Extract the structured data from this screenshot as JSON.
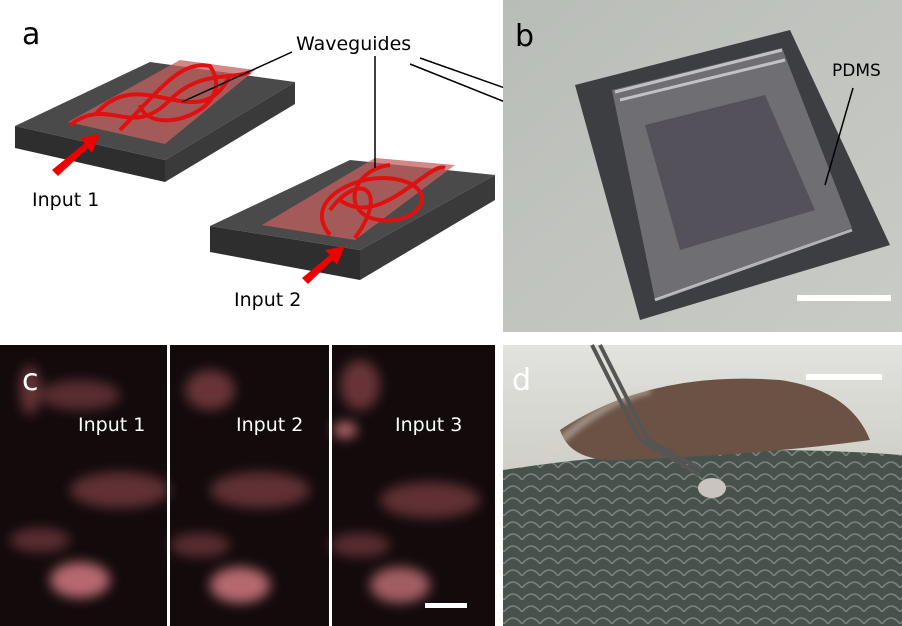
{
  "panel_a": {
    "label": "a",
    "waveguides_label": "Waveguides",
    "input_labels": [
      "Input 1",
      "Input 2"
    ]
  },
  "panel_b": {
    "label": "b",
    "pdms_label": "PDMS"
  },
  "panel_c": {
    "label": "c",
    "input_labels": [
      "Input 1",
      "Input 2",
      "Input 3"
    ]
  },
  "panel_d": {
    "label": "d"
  }
}
